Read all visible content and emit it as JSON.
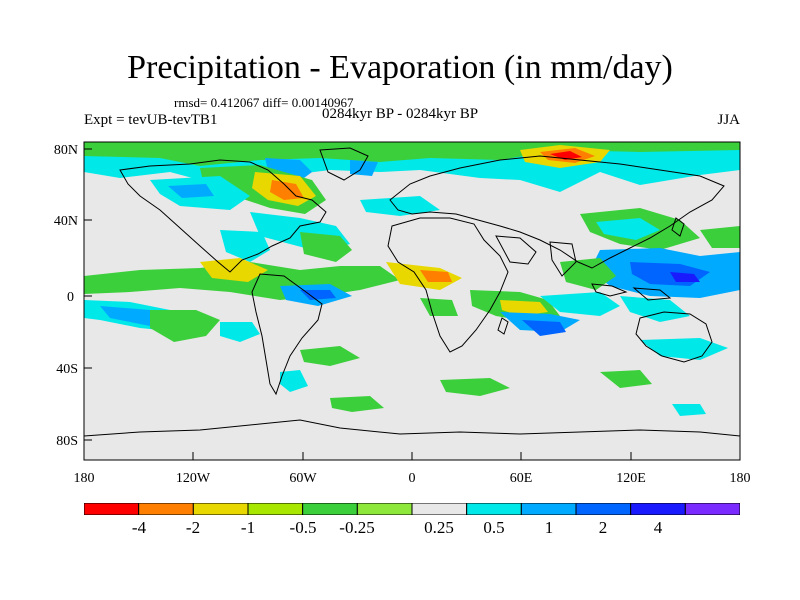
{
  "header": {
    "title": "Precipitation - Evaporation (in mm/day)",
    "stats": "rmsd= 0.412067 diff= 0.00140967",
    "experiment": "Expt = tevUB-tevTB1",
    "period": "0284kyr BP - 0284kyr BP",
    "season": "JJA"
  },
  "map": {
    "lat_labels": [
      "80N",
      "40N",
      "0",
      "40S",
      "80S"
    ],
    "lon_labels": [
      "180",
      "120W",
      "60W",
      "0",
      "60E",
      "120E",
      "180"
    ],
    "background_color": "#e8e8e8"
  },
  "colorbar": {
    "labels": [
      "-4",
      "-2",
      "-1",
      "-0.5",
      "-0.25",
      "0.25",
      "0.5",
      "1",
      "2",
      "4"
    ],
    "colors": [
      "#ff0000",
      "#ff7f00",
      "#e8d800",
      "#a8e800",
      "#3ccf3c",
      "#8ee83c",
      "#e8e8e8",
      "#00e8e8",
      "#00aaff",
      "#0064ff",
      "#1a1aff",
      "#7a2aff"
    ]
  }
}
